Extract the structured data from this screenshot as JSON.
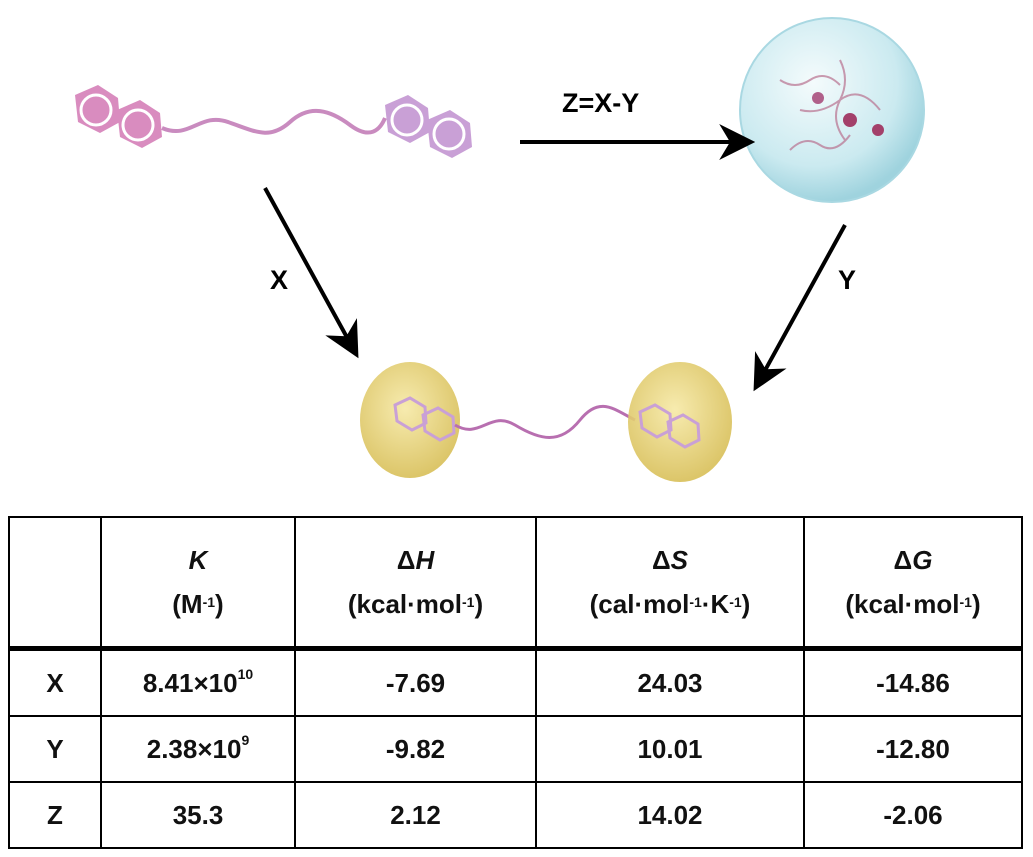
{
  "diagram": {
    "arrow_labels": {
      "top": "Z=X-Y",
      "left": "X",
      "right": "Y"
    },
    "colors": {
      "guest": "#d98cbf",
      "guest_right": "#c9a0d6",
      "bubble": "#bfe6ec",
      "host": "#ecd77a"
    }
  },
  "table": {
    "headers": [
      {
        "delta": "",
        "symbol": "",
        "unit_pre": "",
        "unit_sup1": "",
        "unit_mid": "",
        "unit_sup2": "",
        "unit_post": ""
      },
      {
        "delta": "",
        "symbol": "K",
        "unit_pre": "(M",
        "unit_sup1": "-1",
        "unit_mid": ")",
        "unit_sup2": "",
        "unit_post": ""
      },
      {
        "delta": "Δ",
        "symbol": "H",
        "unit_pre": "(kcal·mol",
        "unit_sup1": "-1",
        "unit_mid": ")",
        "unit_sup2": "",
        "unit_post": ""
      },
      {
        "delta": "Δ",
        "symbol": "S",
        "unit_pre": "(cal·mol",
        "unit_sup1": "-1",
        "unit_mid": "·K",
        "unit_sup2": "-1",
        "unit_post": ")"
      },
      {
        "delta": "Δ",
        "symbol": "G",
        "unit_pre": "(kcal·mol",
        "unit_sup1": "-1",
        "unit_mid": ")",
        "unit_sup2": "",
        "unit_post": ""
      }
    ],
    "rows": [
      {
        "label": "X",
        "K_base": "8.41×10",
        "K_exp": "10",
        "dH": "-7.69",
        "dS": "24.03",
        "dG": "-14.86"
      },
      {
        "label": "Y",
        "K_base": "2.38×10",
        "K_exp": "9",
        "dH": "-9.82",
        "dS": "10.01",
        "dG": "-12.80"
      },
      {
        "label": "Z",
        "K_base": "35.3",
        "K_exp": "",
        "dH": "2.12",
        "dS": "14.02",
        "dG": "-2.06"
      }
    ]
  }
}
